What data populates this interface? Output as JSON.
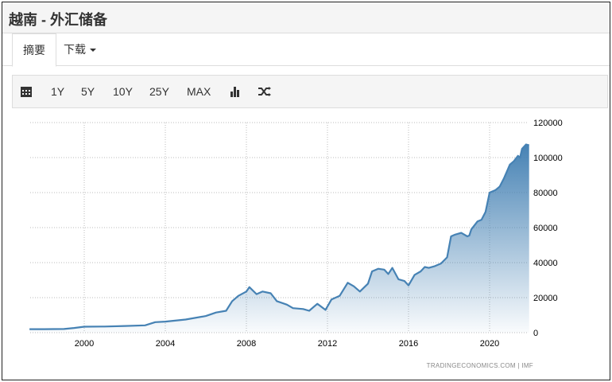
{
  "header": {
    "title": "越南 - 外汇储备"
  },
  "tabs": [
    {
      "label": "摘要"
    },
    {
      "label": "下载"
    }
  ],
  "toolbar": {
    "icons": [
      "calendar-icon",
      "bar-chart-icon",
      "shuffle-icon"
    ],
    "ranges": [
      "1Y",
      "5Y",
      "10Y",
      "25Y",
      "MAX"
    ]
  },
  "source": "TRADINGECONOMICS.COM  |  IMF",
  "chart_data": {
    "type": "area",
    "title": "",
    "xlabel": "",
    "ylabel": "",
    "color": "#4682b4",
    "x_ticks": [
      "2000",
      "2004",
      "2008",
      "2012",
      "2016",
      "2020"
    ],
    "y_ticks": [
      "0",
      "20000",
      "40000",
      "60000",
      "80000",
      "100000",
      "120000"
    ],
    "ylim": [
      0,
      120000
    ],
    "xlim": [
      1997.3,
      2021.95
    ],
    "grid": true,
    "y_axis_side": "right",
    "points": [
      [
        1997.3,
        2000
      ],
      [
        1998,
        2000
      ],
      [
        1999,
        2100
      ],
      [
        1999.5,
        2700
      ],
      [
        2000,
        3400
      ],
      [
        2001,
        3500
      ],
      [
        2002,
        3800
      ],
      [
        2003,
        4200
      ],
      [
        2003.5,
        6000
      ],
      [
        2004,
        6300
      ],
      [
        2005,
        7500
      ],
      [
        2006,
        9500
      ],
      [
        2006.5,
        11500
      ],
      [
        2007,
        12500
      ],
      [
        2007.3,
        18000
      ],
      [
        2007.6,
        21000
      ],
      [
        2008,
        23500
      ],
      [
        2008.15,
        26000
      ],
      [
        2008.5,
        22000
      ],
      [
        2008.8,
        23500
      ],
      [
        2009.2,
        22500
      ],
      [
        2009.5,
        18000
      ],
      [
        2010,
        16000
      ],
      [
        2010.3,
        14000
      ],
      [
        2010.8,
        13500
      ],
      [
        2011.1,
        12500
      ],
      [
        2011.5,
        16500
      ],
      [
        2011.9,
        13000
      ],
      [
        2012.2,
        19000
      ],
      [
        2012.6,
        21000
      ],
      [
        2013,
        28500
      ],
      [
        2013.3,
        26500
      ],
      [
        2013.6,
        23500
      ],
      [
        2014,
        28000
      ],
      [
        2014.2,
        35000
      ],
      [
        2014.5,
        36500
      ],
      [
        2014.8,
        36000
      ],
      [
        2015,
        33500
      ],
      [
        2015.2,
        37000
      ],
      [
        2015.5,
        30500
      ],
      [
        2015.8,
        29500
      ],
      [
        2016,
        27000
      ],
      [
        2016.3,
        33000
      ],
      [
        2016.6,
        35000
      ],
      [
        2016.8,
        37500
      ],
      [
        2017,
        37000
      ],
      [
        2017.3,
        38000
      ],
      [
        2017.6,
        39500
      ],
      [
        2017.9,
        43000
      ],
      [
        2018.1,
        55000
      ],
      [
        2018.3,
        56000
      ],
      [
        2018.6,
        57000
      ],
      [
        2018.9,
        55000
      ],
      [
        2019,
        55500
      ],
      [
        2019.1,
        59000
      ],
      [
        2019.4,
        63500
      ],
      [
        2019.6,
        64500
      ],
      [
        2019.8,
        69000
      ],
      [
        2020,
        80000
      ],
      [
        2020.3,
        81500
      ],
      [
        2020.5,
        83500
      ],
      [
        2020.7,
        88000
      ],
      [
        2021,
        96000
      ],
      [
        2021.2,
        98000
      ],
      [
        2021.4,
        101000
      ],
      [
        2021.5,
        100000
      ],
      [
        2021.6,
        105000
      ],
      [
        2021.8,
        107500
      ],
      [
        2021.95,
        107000
      ]
    ]
  }
}
